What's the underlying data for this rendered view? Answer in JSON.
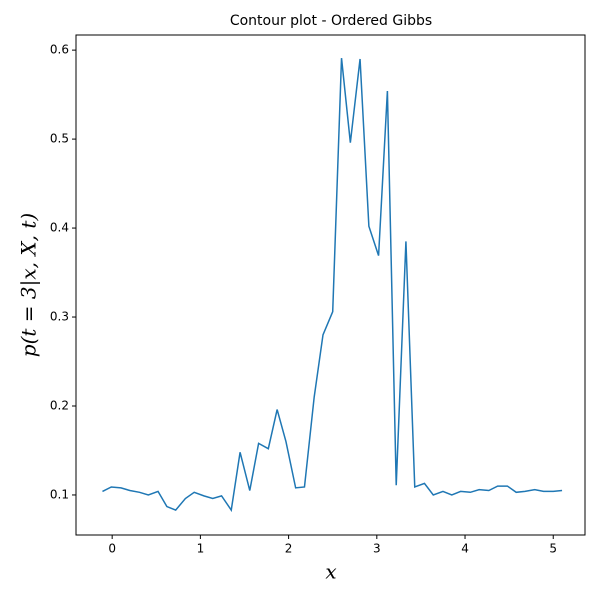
{
  "chart_data": {
    "type": "line",
    "title": "Contour plot - Ordered Gibbs",
    "x_label": "x",
    "y_label": "p(t = 3|x, X, t)",
    "x": [
      -0.11,
      -0.01,
      0.1,
      0.2,
      0.31,
      0.41,
      0.52,
      0.62,
      0.72,
      0.83,
      0.93,
      1.04,
      1.14,
      1.24,
      1.35,
      1.45,
      1.56,
      1.66,
      1.77,
      1.87,
      1.97,
      2.08,
      2.18,
      2.29,
      2.39,
      2.5,
      2.6,
      2.7,
      2.81,
      2.91,
      3.02,
      3.12,
      3.22,
      3.33,
      3.43,
      3.54,
      3.64,
      3.75,
      3.85,
      3.95,
      4.06,
      4.16,
      4.27,
      4.37,
      4.48,
      4.58,
      4.68,
      4.79,
      4.89,
      5.0,
      5.1
    ],
    "series": [
      {
        "color": "#1f77b4",
        "values": [
          0.104,
          0.109,
          0.108,
          0.105,
          0.103,
          0.1,
          0.104,
          0.087,
          0.083,
          0.096,
          0.103,
          0.099,
          0.096,
          0.099,
          0.083,
          0.148,
          0.105,
          0.158,
          0.152,
          0.196,
          0.16,
          0.108,
          0.109,
          0.21,
          0.28,
          0.306,
          0.591,
          0.496,
          0.59,
          0.402,
          0.369,
          0.554,
          0.111,
          0.385,
          0.109,
          0.113,
          0.1,
          0.104,
          0.1,
          0.104,
          0.103,
          0.106,
          0.105,
          0.11,
          0.11,
          0.103,
          0.104,
          0.106,
          0.104,
          0.104,
          0.105
        ]
      }
    ],
    "xlim": [
      -0.41,
      5.36
    ],
    "ylim": [
      0.055,
      0.617
    ],
    "xticks": [
      0,
      1,
      2,
      3,
      4,
      5
    ],
    "yticks": [
      0.1,
      0.2,
      0.3,
      0.4,
      0.5,
      0.6
    ]
  }
}
